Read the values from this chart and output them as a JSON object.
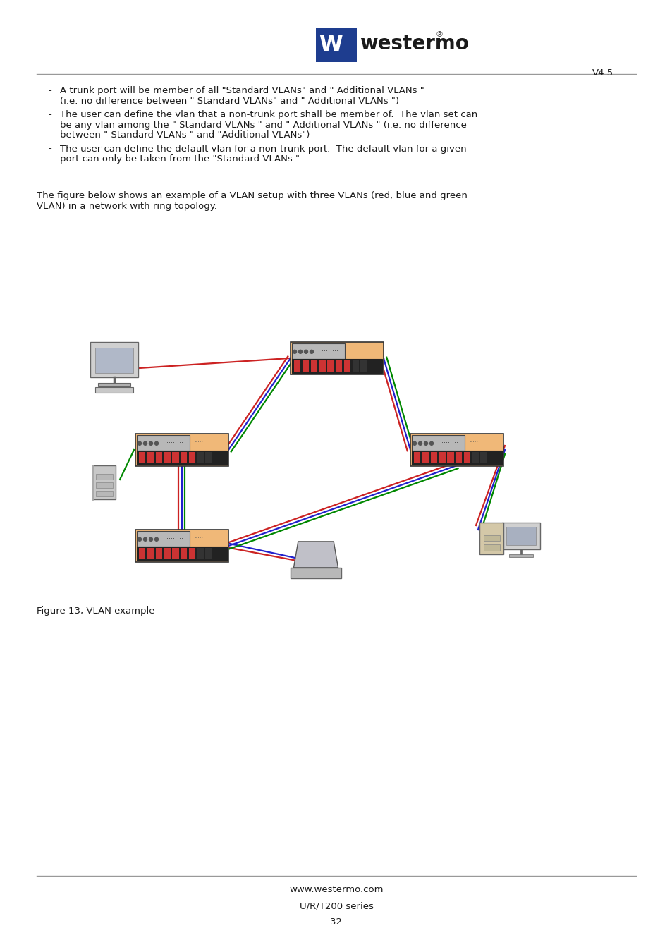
{
  "version": "V4.5",
  "bullet1_dash": "-",
  "bullet1_line1": "A trunk port will be member of all \"Standard VLANs\" and \" Additional VLANs \"",
  "bullet1_line2": "(i.e. no difference between \" Standard VLANs\" and \" Additional VLANs \")",
  "bullet2_dash": "-",
  "bullet2_line1": "The user can define the vlan that a non-trunk port shall be member of.  The vlan set can",
  "bullet2_line2": "be any vlan among the \" Standard VLANs \" and \" Additional VLANs \" (i.e. no difference",
  "bullet2_line3": "between \" Standard VLANs \" and \"Additional VLANs\")",
  "bullet3_dash": "-",
  "bullet3_line1": "The user can define the default vlan for a non-trunk port.  The default vlan for a given",
  "bullet3_line2": "port can only be taken from the \"Standard VLANs \".",
  "intro_line1": "The figure below shows an example of a VLAN setup with three VLANs (red, blue and green",
  "intro_line2": "VLAN) in a network with ring topology.",
  "figure_caption": "Figure 13, VLAN example",
  "footer_line1": "www.westermo.com",
  "footer_line2": "U/R/T200 series",
  "footer_line3": "- 32 -",
  "bg_color": "#ffffff",
  "text_color": "#1a1a1a",
  "switch_fill": "#f0b878",
  "switch_inner_fill": "#c8c8c8",
  "switch_border": "#000000",
  "line_red": "#cc2222",
  "line_blue": "#2222cc",
  "line_green": "#008800",
  "separator_color": "#999999",
  "logo_blue": "#1e3d8f",
  "font_size": 9.5,
  "font_family": "DejaVu Sans"
}
